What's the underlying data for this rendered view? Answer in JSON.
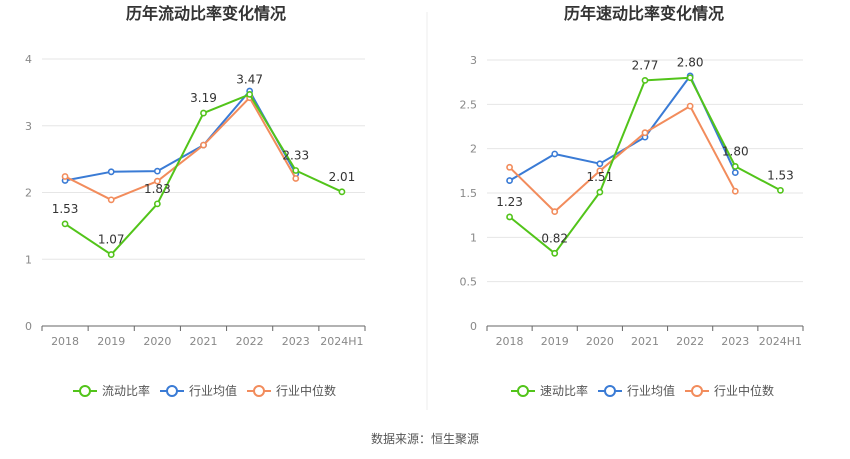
{
  "source_text": "数据来源：恒生聚源",
  "chart_data": [
    {
      "type": "line",
      "title": "历年流动比率变化情况",
      "categories": [
        "2018",
        "2019",
        "2020",
        "2021",
        "2022",
        "2023",
        "2024H1"
      ],
      "ylim": [
        0,
        4
      ],
      "yticks": [
        0,
        1,
        2,
        3,
        4
      ],
      "grid": true,
      "legend_position": "bottom",
      "series": [
        {
          "name": "流动比率",
          "color": "#52c41a",
          "labeled": true,
          "values": [
            1.53,
            1.07,
            1.83,
            3.19,
            3.47,
            2.33,
            2.01
          ]
        },
        {
          "name": "行业均值",
          "color": "#3a7bd5",
          "labeled": false,
          "values": [
            2.18,
            2.31,
            2.32,
            2.71,
            3.52,
            2.28,
            null
          ]
        },
        {
          "name": "行业中位数",
          "color": "#f28c5c",
          "labeled": false,
          "values": [
            2.24,
            1.89,
            2.17,
            2.71,
            3.42,
            2.21,
            null
          ]
        }
      ]
    },
    {
      "type": "line",
      "title": "历年速动比率变化情况",
      "categories": [
        "2018",
        "2019",
        "2020",
        "2021",
        "2022",
        "2023",
        "2024H1"
      ],
      "ylim": [
        0,
        3
      ],
      "yticks": [
        0,
        0.5,
        1,
        1.5,
        2,
        2.5,
        3
      ],
      "grid": true,
      "legend_position": "bottom",
      "series": [
        {
          "name": "速动比率",
          "color": "#52c41a",
          "labeled": true,
          "values": [
            1.23,
            0.82,
            1.51,
            2.77,
            2.8,
            1.8,
            1.53
          ]
        },
        {
          "name": "行业均值",
          "color": "#3a7bd5",
          "labeled": false,
          "values": [
            1.64,
            1.94,
            1.83,
            2.13,
            2.82,
            1.73,
            null
          ]
        },
        {
          "name": "行业中位数",
          "color": "#f28c5c",
          "labeled": false,
          "values": [
            1.79,
            1.29,
            1.75,
            2.18,
            2.48,
            1.52,
            null
          ]
        }
      ]
    }
  ]
}
